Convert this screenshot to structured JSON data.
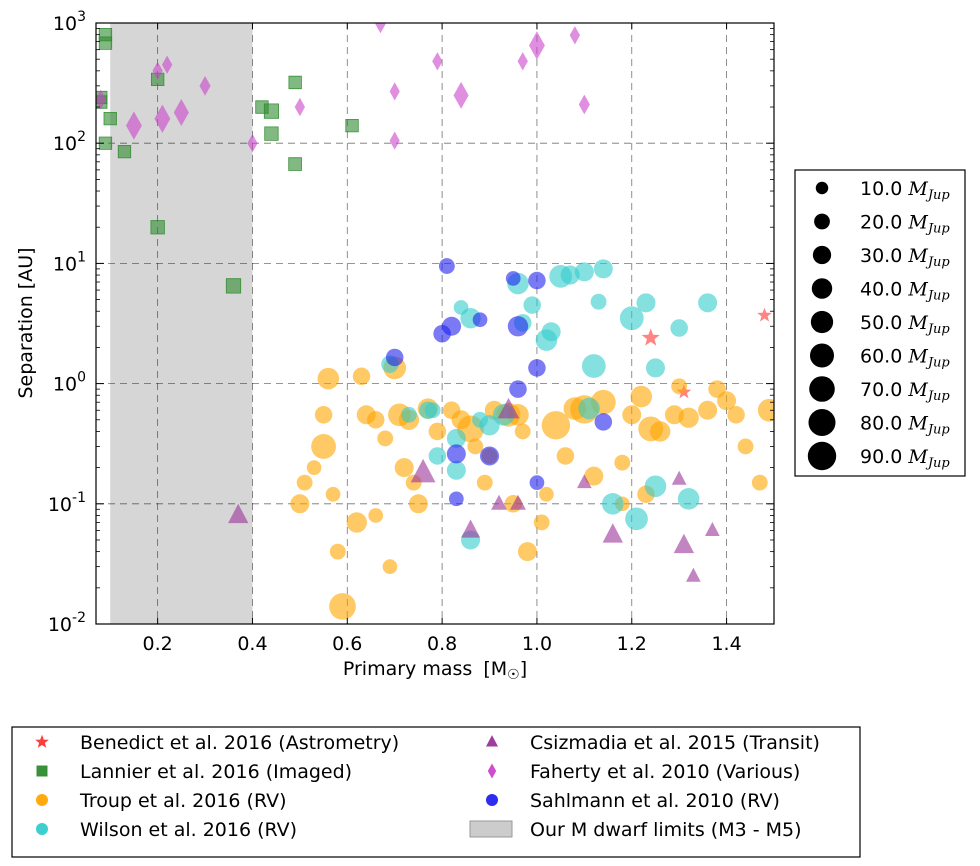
{
  "chart_data": {
    "type": "scatter",
    "xlabel": "Primary mass",
    "xlabel_unit": "[M",
    "xlabel_sub": "☉",
    "xlabel_close": "]",
    "ylabel": "Separation [AU]",
    "xlim": [
      0.07,
      1.5
    ],
    "ylim_log10": [
      -2,
      3
    ],
    "yscale": "log",
    "grid": true,
    "x_ticks": [
      {
        "value": 0.2,
        "label": "0.2"
      },
      {
        "value": 0.4,
        "label": "0.4"
      },
      {
        "value": 0.6,
        "label": "0.6"
      },
      {
        "value": 0.8,
        "label": "0.8"
      },
      {
        "value": 1.0,
        "label": "1.0"
      },
      {
        "value": 1.2,
        "label": "1.2"
      },
      {
        "value": 1.4,
        "label": "1.4"
      }
    ],
    "y_ticks": [
      {
        "exp": -2,
        "base": "10",
        "sup": "-2"
      },
      {
        "exp": -1,
        "base": "10",
        "sup": "-1"
      },
      {
        "exp": 0,
        "base": "10",
        "sup": "0"
      },
      {
        "exp": 1,
        "base": "10",
        "sup": "1"
      },
      {
        "exp": 2,
        "base": "10",
        "sup": "2"
      },
      {
        "exp": 3,
        "base": "10",
        "sup": "3"
      }
    ],
    "shaded_region": {
      "x_from": 0.1,
      "x_to": 0.4,
      "label": "Our M dwarf limits (M3 - M5)",
      "color": "#cccccc"
    },
    "size_legend": {
      "unit": "M",
      "unit_sub": "Jup",
      "entries": [
        {
          "value": 10,
          "label": "10.0"
        },
        {
          "value": 20,
          "label": "20.0"
        },
        {
          "value": 30,
          "label": "30.0"
        },
        {
          "value": 40,
          "label": "40.0"
        },
        {
          "value": 50,
          "label": "50.0"
        },
        {
          "value": 60,
          "label": "60.0"
        },
        {
          "value": 70,
          "label": "70.0"
        },
        {
          "value": 80,
          "label": "80.0"
        },
        {
          "value": 90,
          "label": "90.0"
        }
      ]
    },
    "series": [
      {
        "name": "Benedict et al. 2016 (Astrometry)",
        "marker": "star",
        "color": "#ff3333",
        "points": [
          [
            1.24,
            2.4,
            15
          ],
          [
            1.31,
            0.85,
            8
          ],
          [
            1.48,
            3.7,
            8
          ]
        ]
      },
      {
        "name": "Lannier et al. 2016 (Imaged)",
        "marker": "square",
        "color": "#2e8b2e",
        "points": [
          [
            0.09,
            800,
            12
          ],
          [
            0.09,
            680,
            12
          ],
          [
            0.08,
            240,
            12
          ],
          [
            0.08,
            220,
            12
          ],
          [
            0.1,
            160,
            12
          ],
          [
            0.09,
            100,
            12
          ],
          [
            0.13,
            85,
            12
          ],
          [
            0.2,
            340,
            12
          ],
          [
            0.2,
            20,
            15
          ],
          [
            0.36,
            6.5,
            18
          ],
          [
            0.42,
            200,
            12
          ],
          [
            0.44,
            185,
            18
          ],
          [
            0.44,
            120,
            15
          ],
          [
            0.49,
            320,
            12
          ],
          [
            0.49,
            67,
            13
          ],
          [
            0.61,
            140,
            12
          ]
        ]
      },
      {
        "name": "Troup et al. 2016 (RV)",
        "marker": "circle",
        "color": "#ffa500",
        "points": [
          [
            0.59,
            0.014,
            60
          ],
          [
            0.55,
            0.3,
            50
          ],
          [
            0.56,
            1.1,
            35
          ],
          [
            0.63,
            1.15,
            20
          ],
          [
            0.55,
            0.55,
            20
          ],
          [
            0.51,
            0.15,
            15
          ],
          [
            0.5,
            0.1,
            25
          ],
          [
            0.53,
            0.2,
            12
          ],
          [
            0.57,
            0.12,
            12
          ],
          [
            0.62,
            0.07,
            30
          ],
          [
            0.58,
            0.04,
            15
          ],
          [
            0.64,
            0.55,
            25
          ],
          [
            0.66,
            0.5,
            20
          ],
          [
            0.68,
            0.35,
            15
          ],
          [
            0.7,
            1.35,
            40
          ],
          [
            0.71,
            0.55,
            40
          ],
          [
            0.73,
            0.5,
            30
          ],
          [
            0.72,
            0.2,
            25
          ],
          [
            0.74,
            0.15,
            15
          ],
          [
            0.75,
            0.1,
            25
          ],
          [
            0.77,
            0.62,
            30
          ],
          [
            0.79,
            0.4,
            20
          ],
          [
            0.82,
            0.6,
            20
          ],
          [
            0.84,
            0.5,
            25
          ],
          [
            0.86,
            0.42,
            60
          ],
          [
            0.87,
            0.3,
            15
          ],
          [
            0.89,
            0.15,
            15
          ],
          [
            0.91,
            0.6,
            25
          ],
          [
            0.94,
            0.55,
            45
          ],
          [
            0.96,
            0.55,
            35
          ],
          [
            0.95,
            0.1,
            20
          ],
          [
            0.98,
            0.04,
            25
          ],
          [
            1.01,
            0.07,
            15
          ],
          [
            1.04,
            0.45,
            70
          ],
          [
            1.06,
            0.25,
            20
          ],
          [
            1.08,
            0.62,
            40
          ],
          [
            1.1,
            0.61,
            70
          ],
          [
            1.14,
            0.7,
            50
          ],
          [
            1.12,
            0.17,
            25
          ],
          [
            1.18,
            0.22,
            15
          ],
          [
            1.2,
            0.55,
            25
          ],
          [
            1.22,
            0.78,
            35
          ],
          [
            1.24,
            0.42,
            50
          ],
          [
            1.26,
            0.4,
            30
          ],
          [
            1.23,
            0.12,
            20
          ],
          [
            1.29,
            0.55,
            25
          ],
          [
            1.3,
            0.95,
            15
          ],
          [
            1.32,
            0.52,
            30
          ],
          [
            1.36,
            0.6,
            25
          ],
          [
            1.38,
            0.9,
            20
          ],
          [
            1.4,
            0.72,
            25
          ],
          [
            1.42,
            0.55,
            20
          ],
          [
            1.44,
            0.3,
            15
          ],
          [
            1.47,
            0.15,
            15
          ],
          [
            1.49,
            0.6,
            40
          ],
          [
            0.97,
            0.4,
            15
          ],
          [
            0.9,
            0.25,
            15
          ],
          [
            0.66,
            0.08,
            12
          ],
          [
            0.69,
            0.03,
            12
          ],
          [
            1.02,
            0.12,
            12
          ],
          [
            1.18,
            0.1,
            12
          ]
        ]
      },
      {
        "name": "Wilson et al. 2016 (RV)",
        "marker": "circle",
        "color": "#33cccc",
        "points": [
          [
            0.69,
            1.45,
            20
          ],
          [
            0.73,
            0.55,
            15
          ],
          [
            0.77,
            0.6,
            20
          ],
          [
            0.78,
            0.6,
            15
          ],
          [
            0.79,
            0.25,
            20
          ],
          [
            0.83,
            0.35,
            25
          ],
          [
            0.83,
            0.19,
            25
          ],
          [
            0.84,
            4.3,
            12
          ],
          [
            0.86,
            3.5,
            30
          ],
          [
            0.86,
            0.05,
            25
          ],
          [
            0.88,
            0.5,
            15
          ],
          [
            0.9,
            0.45,
            30
          ],
          [
            0.93,
            0.55,
            35
          ],
          [
            0.96,
            6.8,
            35
          ],
          [
            0.97,
            3.2,
            20
          ],
          [
            0.99,
            4.5,
            20
          ],
          [
            1.02,
            2.3,
            35
          ],
          [
            1.03,
            2.7,
            25
          ],
          [
            1.05,
            7.8,
            40
          ],
          [
            1.07,
            8.0,
            25
          ],
          [
            1.1,
            8.5,
            25
          ],
          [
            1.12,
            1.4,
            45
          ],
          [
            1.13,
            4.8,
            15
          ],
          [
            1.14,
            9.0,
            25
          ],
          [
            1.16,
            0.1,
            35
          ],
          [
            1.2,
            3.5,
            45
          ],
          [
            1.21,
            0.075,
            40
          ],
          [
            1.23,
            4.7,
            25
          ],
          [
            1.25,
            0.14,
            35
          ],
          [
            1.3,
            2.9,
            20
          ],
          [
            1.32,
            0.11,
            35
          ],
          [
            1.36,
            4.7,
            25
          ],
          [
            1.11,
            0.62,
            35
          ],
          [
            1.25,
            1.35,
            25
          ]
        ]
      },
      {
        "name": "Csizmadia et al. 2015 (Transit)",
        "marker": "triangle",
        "color": "#993399",
        "points": [
          [
            0.37,
            0.08,
            30
          ],
          [
            0.76,
            0.18,
            50
          ],
          [
            0.86,
            0.06,
            25
          ],
          [
            0.92,
            0.1,
            15
          ],
          [
            0.94,
            0.6,
            35
          ],
          [
            0.96,
            0.1,
            15
          ],
          [
            1.1,
            0.15,
            12
          ],
          [
            1.16,
            0.055,
            30
          ],
          [
            1.31,
            0.045,
            30
          ],
          [
            1.33,
            0.025,
            12
          ],
          [
            1.37,
            0.06,
            12
          ],
          [
            1.3,
            0.16,
            12
          ]
        ]
      },
      {
        "name": "Faherty et al. 2010 (Various)",
        "marker": "diamond",
        "color": "#cc44cc",
        "points": [
          [
            0.08,
            230,
            15
          ],
          [
            0.15,
            140,
            40
          ],
          [
            0.21,
            160,
            40
          ],
          [
            0.25,
            180,
            35
          ],
          [
            0.2,
            400,
            12
          ],
          [
            0.22,
            450,
            12
          ],
          [
            0.3,
            300,
            15
          ],
          [
            0.4,
            100,
            12
          ],
          [
            0.5,
            200,
            12
          ],
          [
            0.67,
            980,
            12
          ],
          [
            0.7,
            270,
            12
          ],
          [
            0.7,
            105,
            12
          ],
          [
            0.79,
            480,
            12
          ],
          [
            0.84,
            250,
            35
          ],
          [
            0.97,
            480,
            12
          ],
          [
            1.0,
            650,
            40
          ],
          [
            1.08,
            790,
            12
          ],
          [
            1.1,
            210,
            15
          ]
        ]
      },
      {
        "name": "Sahlmann et al. 2010 (RV)",
        "marker": "circle",
        "color": "#2222ee",
        "points": [
          [
            0.7,
            1.65,
            20
          ],
          [
            0.8,
            2.6,
            20
          ],
          [
            0.82,
            3.0,
            25
          ],
          [
            0.81,
            9.5,
            15
          ],
          [
            0.83,
            0.26,
            25
          ],
          [
            0.83,
            0.11,
            12
          ],
          [
            0.88,
            3.4,
            12
          ],
          [
            0.9,
            0.25,
            25
          ],
          [
            0.95,
            7.5,
            12
          ],
          [
            0.96,
            3.0,
            30
          ],
          [
            0.96,
            0.9,
            20
          ],
          [
            1.0,
            7.2,
            20
          ],
          [
            1.0,
            1.35,
            20
          ],
          [
            1.14,
            0.48,
            20
          ],
          [
            1.0,
            0.15,
            12
          ]
        ]
      }
    ],
    "legend_entries": [
      {
        "label": "Benedict et al. 2016 (Astrometry)",
        "marker": "star",
        "color": "#ff3333"
      },
      {
        "label": "Csizmadia et al. 2015 (Transit)",
        "marker": "triangle",
        "color": "#993399"
      },
      {
        "label": "Lannier et al. 2016 (Imaged)",
        "marker": "square",
        "color": "#2e8b2e"
      },
      {
        "label": "Faherty et al. 2010 (Various)",
        "marker": "diamond",
        "color": "#cc44cc"
      },
      {
        "label": "Troup et al. 2016 (RV)",
        "marker": "circle",
        "color": "#ffa500"
      },
      {
        "label": "Sahlmann et al. 2010 (RV)",
        "marker": "circle",
        "color": "#2222ee"
      },
      {
        "label": "Wilson et al. 2016 (RV)",
        "marker": "circle",
        "color": "#33cccc"
      },
      {
        "label": "Our M dwarf limits (M3 - M5)",
        "marker": "patch",
        "color": "#cccccc"
      }
    ]
  }
}
